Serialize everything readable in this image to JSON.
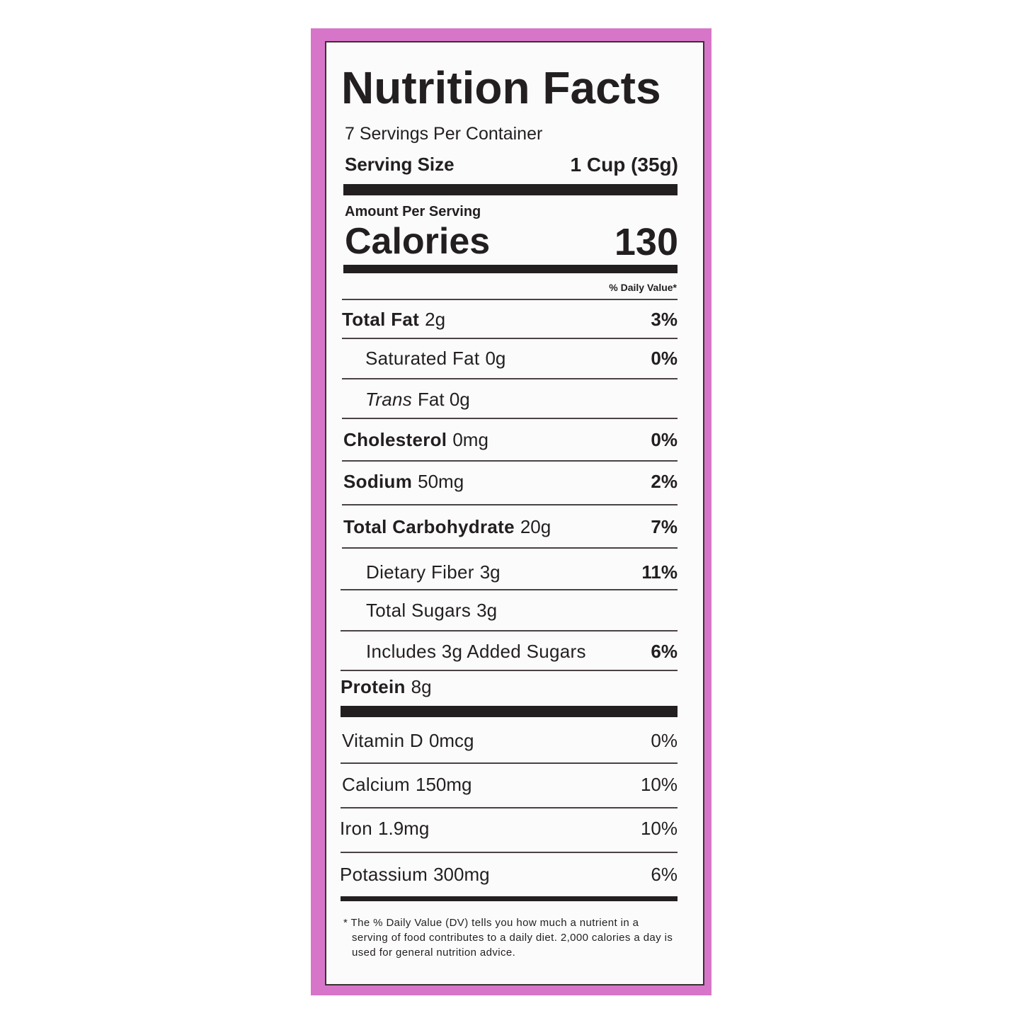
{
  "label": {
    "title": "Nutrition Facts",
    "servings": "7 Servings Per Container",
    "serving_size": {
      "label": "Serving Size",
      "value": "1 Cup (35g)"
    },
    "amount_per_serving": "Amount Per Serving",
    "calories": {
      "label": "Calories",
      "value": "130"
    },
    "daily_value_header": "% Daily Value*",
    "rows": [
      {
        "name": "Total Fat",
        "amount": "2g",
        "dv": "3%"
      },
      {
        "name": "Saturated Fat",
        "amount": "0g",
        "dv": "0%"
      },
      {
        "name": "Trans",
        "amount": "Fat 0g"
      },
      {
        "name": "Cholesterol",
        "amount": "0mg",
        "dv": "0%"
      },
      {
        "name": "Sodium",
        "amount": "50mg",
        "dv": "2%"
      },
      {
        "name": "Total Carbohydrate",
        "amount": "20g",
        "dv": "7%"
      },
      {
        "name": "Dietary Fiber",
        "amount": "3g",
        "dv": "11%"
      },
      {
        "name": "Total Sugars",
        "amount": "3g"
      },
      {
        "name": "Includes 3g Added Sugars",
        "dv": "6%"
      },
      {
        "name": "Protein",
        "amount": "8g"
      },
      {
        "name": "Vitamin D",
        "amount": "0mcg",
        "dv": "0%"
      },
      {
        "name": "Calcium",
        "amount": "150mg",
        "dv": "10%"
      },
      {
        "name": "Iron",
        "amount": "1.9mg",
        "dv": "10%"
      },
      {
        "name": "Potassium",
        "amount": "300mg",
        "dv": "6%"
      }
    ],
    "footnote": "* The % Daily Value (DV) tells you how much a nutrient in a serving of food contributes to a daily diet. 2,000 calories a day is used for general nutrition advice."
  }
}
